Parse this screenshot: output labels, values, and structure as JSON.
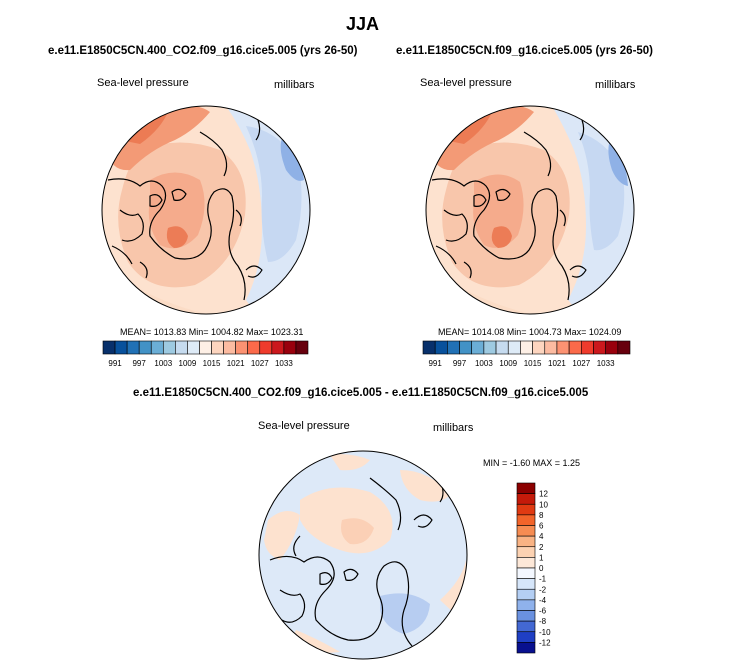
{
  "figure": {
    "title": "JJA"
  },
  "chart_data": [
    {
      "type": "heatmap",
      "subtitle": "e.e11.E1850C5CN.400_CO2.f09_g16.cice5.005 (yrs 26-50)",
      "field_label": "Sea-level pressure",
      "units_label": "millibars",
      "stats_text": "MEAN= 1013.83  Min= 1004.82  Max= 1023.31",
      "mean": 1013.83,
      "min": 1004.82,
      "max": 1023.31,
      "colorbar_ticks": [
        "991",
        "997",
        "1003",
        "1009",
        "1015",
        "1021",
        "1027",
        "1033"
      ],
      "colorbar_colors": [
        "#08306b",
        "#08519c",
        "#2171b5",
        "#4292c6",
        "#6baed6",
        "#9ecae1",
        "#c6dbef",
        "#deebf7",
        "#fef0e6",
        "#fdd5bf",
        "#fcbba1",
        "#fc9272",
        "#fb6a4a",
        "#ef3b2c",
        "#cb181d",
        "#99000d",
        "#67000d"
      ]
    },
    {
      "type": "heatmap",
      "subtitle": "e.e11.E1850C5CN.f09_g16.cice5.005 (yrs 26-50)",
      "field_label": "Sea-level pressure",
      "units_label": "millibars",
      "stats_text": "MEAN= 1014.08  Min= 1004.73  Max= 1024.09",
      "mean": 1014.08,
      "min": 1004.73,
      "max": 1024.09,
      "colorbar_ticks": [
        "991",
        "997",
        "1003",
        "1009",
        "1015",
        "1021",
        "1027",
        "1033"
      ],
      "colorbar_colors": [
        "#08306b",
        "#08519c",
        "#2171b5",
        "#4292c6",
        "#6baed6",
        "#9ecae1",
        "#c6dbef",
        "#deebf7",
        "#fef0e6",
        "#fdd5bf",
        "#fcbba1",
        "#fc9272",
        "#fb6a4a",
        "#ef3b2c",
        "#cb181d",
        "#99000d",
        "#67000d"
      ]
    },
    {
      "type": "heatmap",
      "subtitle": "e.e11.E1850C5CN.400_CO2.f09_g16.cice5.005 - e.e11.E1850C5CN.f09_g16.cice5.005",
      "field_label": "Sea-level pressure",
      "units_label": "millibars",
      "stats_text": "MIN =  -1.60 MAX =   1.25",
      "min": -1.6,
      "max": 1.25,
      "colorbar_ticks": [
        "12",
        "10",
        "8",
        "6",
        "4",
        "2",
        "1",
        "0",
        "-1",
        "-2",
        "-4",
        "-6",
        "-8",
        "-10",
        "-12"
      ],
      "colorbar_colors": [
        "#8b0000",
        "#c41a0a",
        "#e03a12",
        "#f2642a",
        "#f68c52",
        "#f9b384",
        "#fcd2b2",
        "#fde8d8",
        "#f4f8ff",
        "#d6e6fa",
        "#b4cff4",
        "#8fb2ec",
        "#6a91e0",
        "#4368d3",
        "#1f3fc4",
        "#08108f"
      ]
    }
  ]
}
